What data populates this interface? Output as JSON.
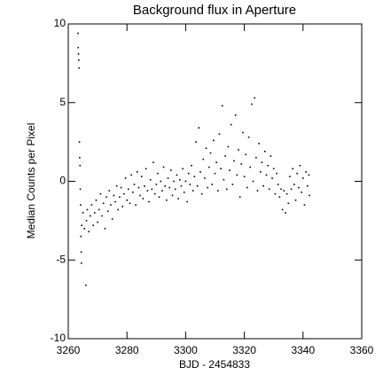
{
  "chart_data": {
    "type": "scatter",
    "title": "Background flux in Aperture",
    "x_label": "BJD - 2454833",
    "y_label": "Median Counts per Pixel",
    "xlim": [
      3260,
      3360
    ],
    "xticks": [
      3260,
      3280,
      3300,
      3320,
      3340,
      3360
    ],
    "ylim": [
      -10,
      10
    ],
    "yticks": [
      -10,
      -5,
      0,
      5,
      10
    ],
    "color": "#000000",
    "x": [
      3263.3,
      3263.4,
      3263.5,
      3263.6,
      3263.7,
      3263.8,
      3263.9,
      3264.0,
      3264.1,
      3264.2,
      3264.3,
      3264.4,
      3264.5,
      3264.6,
      3265.0,
      3265.5,
      3266.0,
      3266.2,
      3266.5,
      3267.0,
      3267.5,
      3268.0,
      3268.5,
      3269.0,
      3269.5,
      3270.0,
      3270.5,
      3271.0,
      3271.5,
      3272.0,
      3272.5,
      3273.0,
      3273.5,
      3274.0,
      3274.5,
      3275.0,
      3275.5,
      3276.0,
      3276.5,
      3277.0,
      3277.5,
      3278.0,
      3278.5,
      3279.0,
      3279.5,
      3280.0,
      3280.5,
      3281.0,
      3281.5,
      3282.0,
      3282.5,
      3283.0,
      3283.5,
      3284.0,
      3284.5,
      3285.0,
      3285.5,
      3286.0,
      3286.5,
      3287.0,
      3287.5,
      3288.0,
      3288.5,
      3289.0,
      3289.5,
      3290.0,
      3290.5,
      3291.0,
      3291.5,
      3292.0,
      3292.5,
      3293.0,
      3293.5,
      3294.0,
      3294.5,
      3295.0,
      3295.5,
      3296.0,
      3296.5,
      3297.0,
      3297.5,
      3298.0,
      3298.5,
      3299.0,
      3299.5,
      3300.0,
      3300.5,
      3301.0,
      3301.5,
      3302.0,
      3302.5,
      3303.0,
      3303.5,
      3304.0,
      3304.5,
      3305.0,
      3305.5,
      3306.0,
      3306.5,
      3307.0,
      3307.5,
      3308.0,
      3308.5,
      3309.0,
      3309.5,
      3310.0,
      3310.5,
      3311.0,
      3311.5,
      3312.0,
      3312.5,
      3313.0,
      3313.5,
      3314.0,
      3314.5,
      3315.0,
      3315.5,
      3316.0,
      3316.5,
      3317.0,
      3317.5,
      3318.0,
      3318.5,
      3319.0,
      3319.5,
      3320.0,
      3320.5,
      3321.0,
      3321.5,
      3322.0,
      3322.5,
      3323.0,
      3323.5,
      3324.0,
      3324.5,
      3325.0,
      3325.5,
      3326.0,
      3326.5,
      3327.0,
      3327.5,
      3328.0,
      3328.5,
      3329.0,
      3329.5,
      3330.0,
      3330.5,
      3331.0,
      3331.5,
      3332.0,
      3332.5,
      3333.0,
      3333.5,
      3334.0,
      3334.5,
      3335.0,
      3335.5,
      3336.0,
      3336.5,
      3337.0,
      3337.5,
      3338.0,
      3338.5,
      3339.0,
      3339.5,
      3340.0,
      3340.5,
      3341.0,
      3341.5,
      3342.0,
      3342.2
    ],
    "values": [
      9.4,
      8.5,
      8.1,
      7.7,
      7.2,
      2.5,
      1.5,
      1.0,
      -0.5,
      -1.5,
      -3.5,
      -4.5,
      -5.2,
      -2.8,
      -2.0,
      -3.0,
      -6.6,
      -2.5,
      -1.8,
      -3.2,
      -2.2,
      -1.5,
      -2.8,
      -2.0,
      -1.2,
      -2.6,
      -1.8,
      -0.8,
      -2.2,
      -1.4,
      -3.0,
      -1.0,
      -1.9,
      -0.6,
      -1.5,
      -2.4,
      -0.9,
      -1.3,
      -0.3,
      -1.8,
      -1.0,
      -0.4,
      -1.6,
      -0.8,
      0.2,
      -1.2,
      -0.5,
      -1.4,
      0.4,
      -0.7,
      -0.2,
      -1.5,
      0.6,
      -0.4,
      -0.9,
      0.3,
      -1.1,
      -0.3,
      0.8,
      -0.6,
      -1.3,
      0.1,
      -0.5,
      1.2,
      -0.8,
      -0.2,
      0.5,
      -1.0,
      0.0,
      -0.6,
      0.9,
      -0.3,
      -1.2,
      0.2,
      -0.4,
      0.7,
      -0.9,
      0.0,
      -0.5,
      0.4,
      -1.1,
      0.1,
      -0.3,
      0.8,
      -0.7,
      0.0,
      -1.3,
      0.5,
      -0.2,
      1.0,
      -0.6,
      0.3,
      2.5,
      -0.3,
      3.4,
      0.6,
      -0.8,
      1.4,
      0.2,
      2.1,
      -0.4,
      0.9,
      1.8,
      -0.2,
      2.6,
      0.5,
      1.2,
      -0.6,
      3.0,
      0.8,
      4.8,
      0.1,
      1.6,
      -0.5,
      2.2,
      0.7,
      3.6,
      -0.2,
      1.3,
      4.2,
      0.4,
      2.0,
      -1.0,
      1.1,
      3.1,
      0.3,
      1.7,
      -0.4,
      2.8,
      0.9,
      4.9,
      0.0,
      5.3,
      1.5,
      -0.6,
      2.4,
      0.6,
      1.2,
      -0.3,
      1.9,
      0.4,
      1.0,
      -0.5,
      1.6,
      0.2,
      0.8,
      -0.8,
      0.5,
      -0.2,
      -1.0,
      -0.5,
      -1.8,
      -0.6,
      -2.0,
      -0.8,
      -1.4,
      0.3,
      -0.5,
      0.8,
      -0.2,
      -1.2,
      0.5,
      -0.4,
      1.0,
      -0.7,
      0.2,
      -1.5,
      0.6,
      -0.3,
      0.4,
      -0.9
    ]
  }
}
